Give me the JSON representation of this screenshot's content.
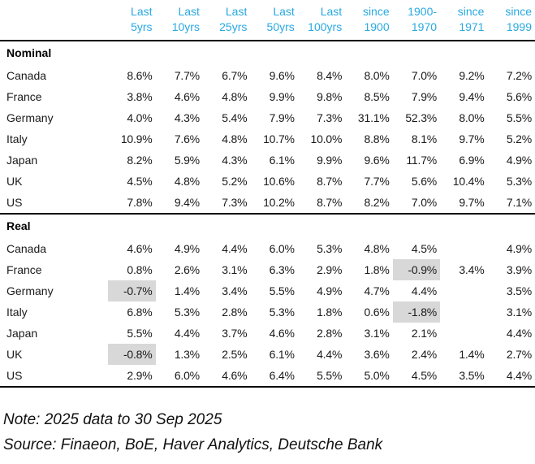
{
  "chart_data": {
    "type": "table",
    "column_headers": [
      {
        "line1": "Last",
        "line2": "5yrs"
      },
      {
        "line1": "Last",
        "line2": "10yrs"
      },
      {
        "line1": "Last",
        "line2": "25yrs"
      },
      {
        "line1": "Last",
        "line2": "50yrs"
      },
      {
        "line1": "Last",
        "line2": "100yrs"
      },
      {
        "line1": "since",
        "line2": "1900"
      },
      {
        "line1": "1900-",
        "line2": "1970"
      },
      {
        "line1": "since",
        "line2": "1971"
      },
      {
        "line1": "since",
        "line2": "1999"
      }
    ],
    "sections": [
      {
        "label": "Nominal",
        "rows": [
          {
            "country": "Canada",
            "values": [
              "8.6%",
              "7.7%",
              "6.7%",
              "9.6%",
              "8.4%",
              "8.0%",
              "7.0%",
              "9.2%",
              "7.2%"
            ]
          },
          {
            "country": "France",
            "values": [
              "3.8%",
              "4.6%",
              "4.8%",
              "9.9%",
              "9.8%",
              "8.5%",
              "7.9%",
              "9.4%",
              "5.6%"
            ]
          },
          {
            "country": "Germany",
            "values": [
              "4.0%",
              "4.3%",
              "5.4%",
              "7.9%",
              "7.3%",
              "31.1%",
              "52.3%",
              "8.0%",
              "5.5%"
            ]
          },
          {
            "country": "Italy",
            "values": [
              "10.9%",
              "7.6%",
              "4.8%",
              "10.7%",
              "10.0%",
              "8.8%",
              "8.1%",
              "9.7%",
              "5.2%"
            ]
          },
          {
            "country": "Japan",
            "values": [
              "8.2%",
              "5.9%",
              "4.3%",
              "6.1%",
              "9.9%",
              "9.6%",
              "11.7%",
              "6.9%",
              "4.9%"
            ]
          },
          {
            "country": "UK",
            "values": [
              "4.5%",
              "4.8%",
              "5.2%",
              "10.6%",
              "8.7%",
              "7.7%",
              "5.6%",
              "10.4%",
              "5.3%"
            ]
          },
          {
            "country": "US",
            "values": [
              "7.8%",
              "9.4%",
              "7.3%",
              "10.2%",
              "8.7%",
              "8.2%",
              "7.0%",
              "9.7%",
              "7.1%"
            ]
          }
        ]
      },
      {
        "label": "Real",
        "rows": [
          {
            "country": "Canada",
            "values": [
              "4.6%",
              "4.9%",
              "4.4%",
              "6.0%",
              "5.3%",
              "4.8%",
              "4.5%",
              "",
              "4.9%"
            ]
          },
          {
            "country": "France",
            "values": [
              "0.8%",
              "2.6%",
              "3.1%",
              "6.3%",
              "2.9%",
              "1.8%",
              "-0.9%",
              "3.4%",
              "3.9%"
            ]
          },
          {
            "country": "Germany",
            "values": [
              "-0.7%",
              "1.4%",
              "3.4%",
              "5.5%",
              "4.9%",
              "4.7%",
              "4.4%",
              "",
              "3.5%"
            ]
          },
          {
            "country": "Italy",
            "values": [
              "6.8%",
              "5.3%",
              "2.8%",
              "5.3%",
              "1.8%",
              "0.6%",
              "-1.8%",
              "",
              "3.1%"
            ]
          },
          {
            "country": "Japan",
            "values": [
              "5.5%",
              "4.4%",
              "3.7%",
              "4.6%",
              "2.8%",
              "3.1%",
              "2.1%",
              "",
              "4.4%"
            ]
          },
          {
            "country": "UK",
            "values": [
              "-0.8%",
              "1.3%",
              "2.5%",
              "6.1%",
              "4.4%",
              "3.6%",
              "2.4%",
              "1.4%",
              "2.7%"
            ]
          },
          {
            "country": "US",
            "values": [
              "2.9%",
              "6.0%",
              "4.6%",
              "6.4%",
              "5.5%",
              "5.0%",
              "4.5%",
              "3.5%",
              "4.4%"
            ]
          }
        ]
      }
    ],
    "highlight_rule": "negative values shown on gray background",
    "note": "Note: 2025 data to 30 Sep 2025",
    "source": "Source: Finaeon, BoE, Haver Analytics, Deutsche Bank"
  },
  "colors": {
    "header_blue": "#29A9E2",
    "highlight_gray": "#D8D8D8",
    "text": "#1A1A1A",
    "rule_black": "#000000"
  }
}
